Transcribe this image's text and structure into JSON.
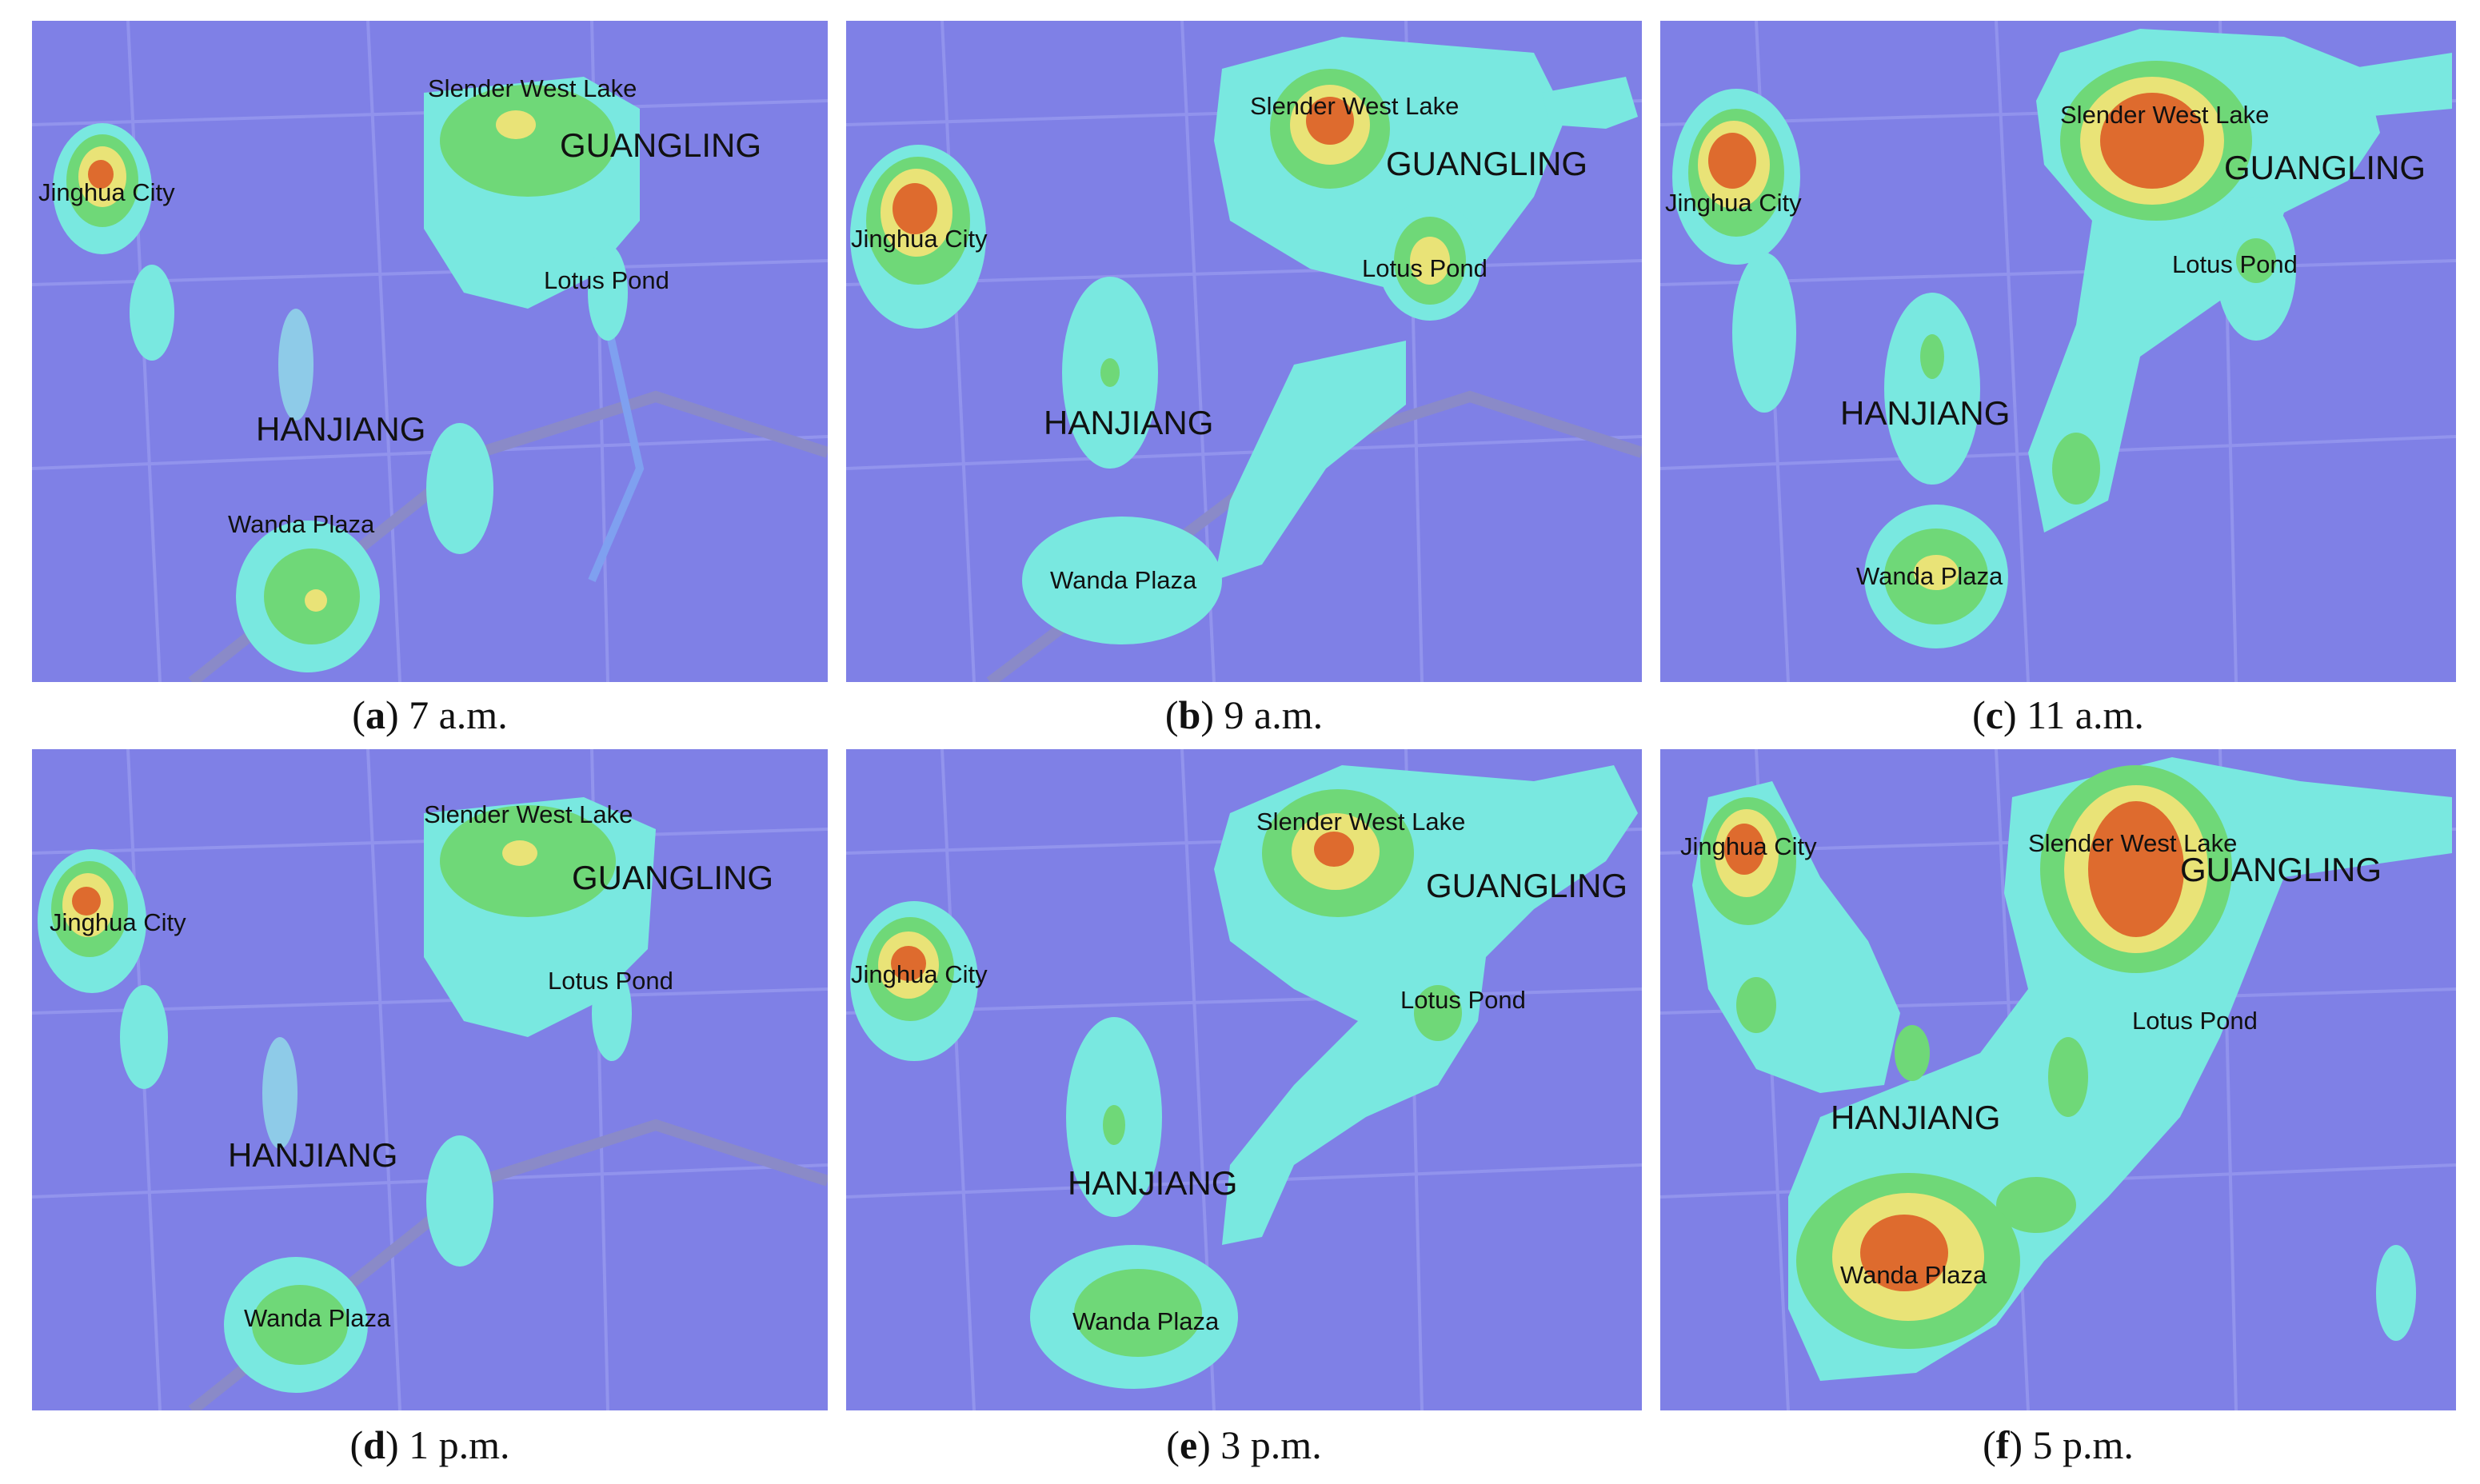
{
  "panels": [
    {
      "letter": "a",
      "time": "7 a.m."
    },
    {
      "letter": "b",
      "time": "9 a.m."
    },
    {
      "letter": "c",
      "time": "11 a.m."
    },
    {
      "letter": "d",
      "time": "1 p.m."
    },
    {
      "letter": "e",
      "time": "3 p.m."
    },
    {
      "letter": "f",
      "time": "5 p.m."
    }
  ],
  "places": {
    "jinghua": "Jinghua City",
    "slender": "Slender West Lake",
    "guangling": "GUANGLING",
    "lotus": "Lotus Pond",
    "hanjiang": "HANJIANG",
    "wanda": "Wanda Plaza"
  },
  "colors": {
    "background": "#7f80e6",
    "low": "#8ecbe8",
    "cyan": "#79e8e0",
    "green": "#6fd878",
    "yellow": "#e9e377",
    "red": "#de6b2e"
  }
}
